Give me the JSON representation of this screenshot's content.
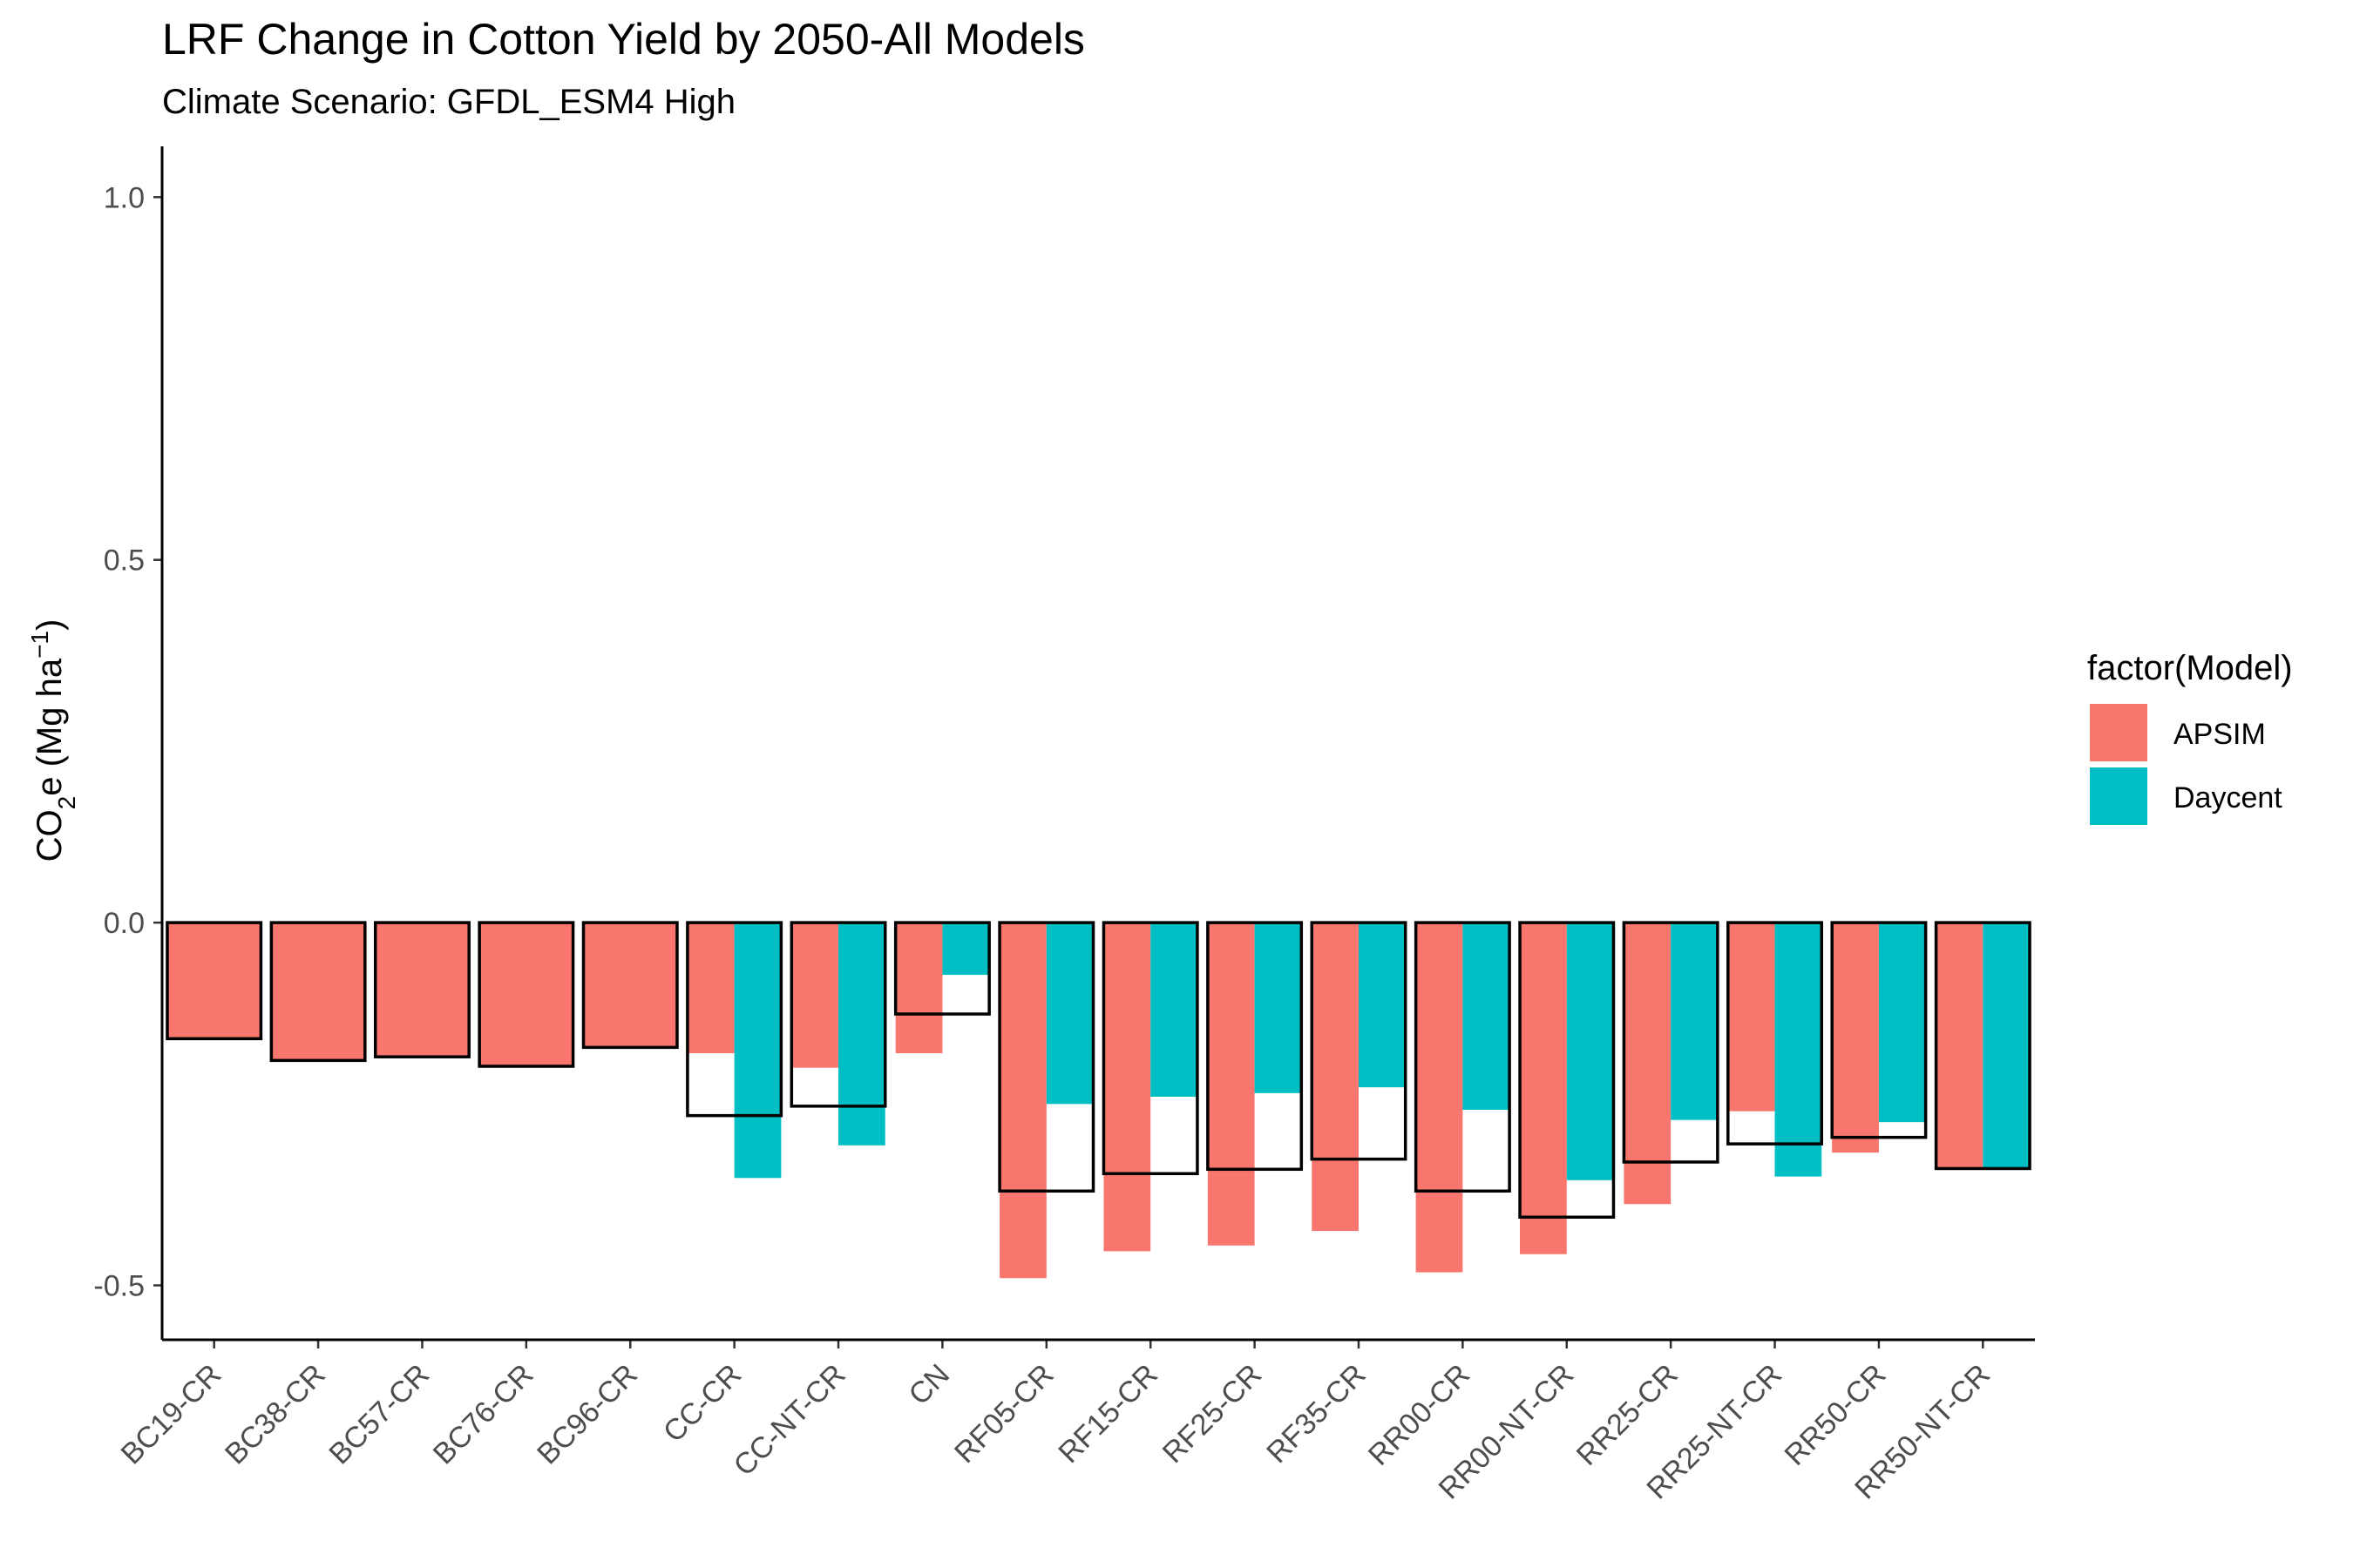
{
  "chart_data": {
    "type": "bar",
    "title": "LRF Change in Cotton Yield by 2050-All Models",
    "subtitle": "Climate Scenario: GFDL_ESM4 High",
    "ylabel": {
      "prefix": "CO",
      "sub": "2",
      "mid": "e (Mg ha",
      "sup": "−1",
      "suffix": ")"
    },
    "ylim": [
      -0.575,
      1.07
    ],
    "yticks": [
      1.0,
      0.5,
      0.0,
      -0.5
    ],
    "ytick_labels": [
      "1.0",
      "0.5",
      "0.0",
      "-0.5"
    ],
    "categories": [
      "BC19-CR",
      "BC38-CR",
      "BC57-CR",
      "BC76-CR",
      "BC96-CR",
      "CC-CR",
      "CC-NT-CR",
      "CN",
      "RF05-CR",
      "RF15-CR",
      "RF25-CR",
      "RF35-CR",
      "RR00-CR",
      "RR00-NT-CR",
      "RR25-CR",
      "RR25-NT-CR",
      "RR50-CR",
      "RR50-NT-CR"
    ],
    "series": [
      {
        "name": "APSIM",
        "color": "#F8766D",
        "values": [
          -0.16,
          -0.19,
          -0.185,
          -0.198,
          -0.172,
          -0.18,
          -0.2,
          -0.18,
          -0.49,
          -0.453,
          -0.445,
          -0.425,
          -0.482,
          -0.457,
          -0.388,
          -0.26,
          -0.317,
          -0.34
        ]
      },
      {
        "name": "Daycent",
        "color": "#00BFC4",
        "values": [
          null,
          null,
          null,
          null,
          null,
          -0.352,
          -0.307,
          -0.072,
          -0.25,
          -0.24,
          -0.235,
          -0.227,
          -0.258,
          -0.355,
          -0.272,
          -0.35,
          -0.275,
          -0.338
        ]
      }
    ],
    "mean_outline": [
      -0.16,
      -0.19,
      -0.185,
      -0.198,
      -0.172,
      -0.266,
      -0.253,
      -0.126,
      -0.37,
      -0.346,
      -0.34,
      -0.326,
      -0.37,
      -0.406,
      -0.33,
      -0.305,
      -0.296,
      -0.339
    ],
    "legend": {
      "title": "factor(Model)",
      "position": "right"
    }
  }
}
